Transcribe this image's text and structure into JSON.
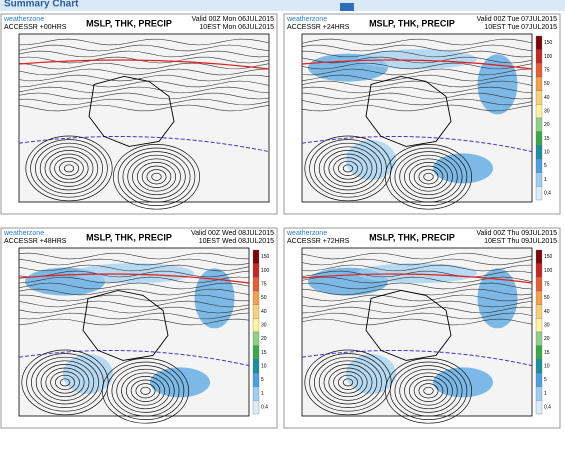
{
  "header": {
    "title": "Summary Chart"
  },
  "panels": [
    {
      "brand": "weatherzone",
      "run": "ACCESSR +00HRS",
      "title": "MSLP, THK, PRECIP",
      "valid": "Valid 00Z Mon 06JUL2015",
      "local": "10EST Mon 06JUL2015",
      "colorbar": false
    },
    {
      "brand": "weatherzone",
      "run": "ACCESSR +24HRS",
      "title": "MSLP, THK, PRECIP",
      "valid": "Valid 00Z Tue 07JUL2015",
      "local": "10EST Tue 07JUL2015",
      "colorbar": true
    },
    {
      "brand": "weatherzone",
      "run": "ACCESSR +48HRS",
      "title": "MSLP, THK, PRECIP",
      "valid": "Valid 00Z Wed 08JUL2015",
      "local": "10EST Wed 08JUL2015",
      "colorbar": true
    },
    {
      "brand": "weatherzone",
      "run": "ACCESSR +72HRS",
      "title": "MSLP, THK, PRECIP",
      "valid": "Valid 00Z Thu 09JUL2015",
      "local": "10EST Thu 09JUL2015",
      "colorbar": true
    }
  ],
  "colorbar": {
    "labels": [
      "150",
      "100",
      "75",
      "50",
      "40",
      "30",
      "20",
      "15",
      "10",
      "5",
      "1",
      "0.4"
    ]
  }
}
